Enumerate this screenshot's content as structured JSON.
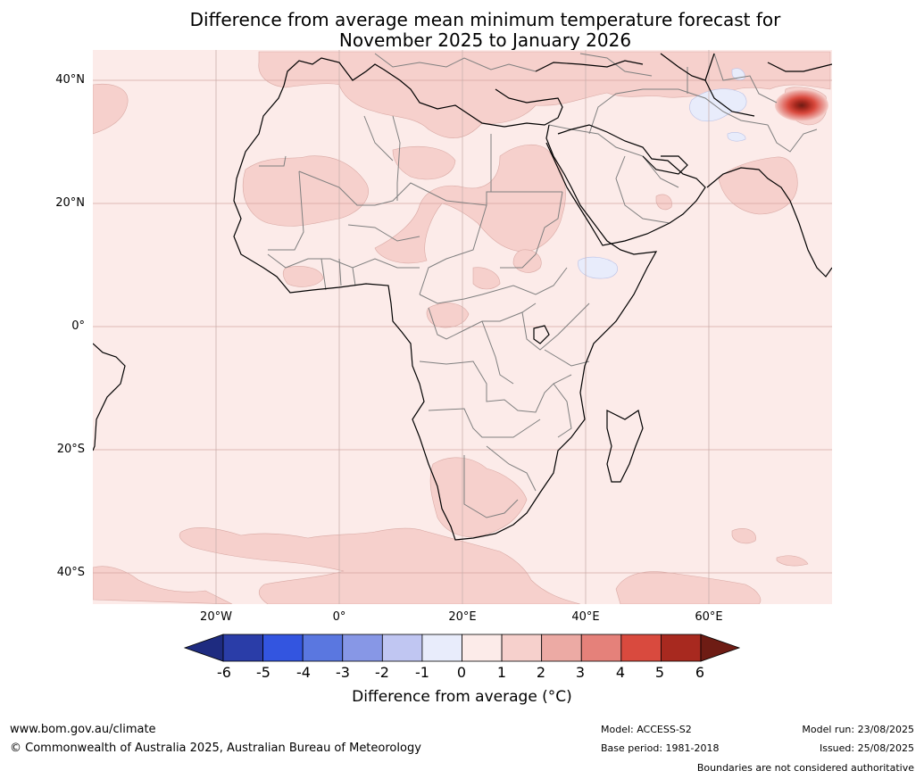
{
  "title": {
    "line1": "Difference from average mean minimum temperature forecast for",
    "line2": "November 2025 to January 2026"
  },
  "map": {
    "lat_labels": [
      "40°N",
      "20°N",
      "0°",
      "20°S",
      "40°S"
    ],
    "lon_labels": [
      "20°W",
      "0°",
      "20°E",
      "40°E",
      "60°E"
    ],
    "lat_values": [
      40,
      20,
      0,
      -20,
      -40
    ],
    "lon_values": [
      -20,
      0,
      20,
      40,
      60
    ],
    "extent": {
      "lon_min": -40,
      "lon_max": 80,
      "lat_min": -45,
      "lat_max": 45
    },
    "background_color": "#fcebe9",
    "land_outline_color": "#000000",
    "border_color": "#7f7f7f",
    "hotspot": {
      "lon": 75,
      "lat": 37,
      "peak_class": "5 to 6"
    },
    "cool_patches": [
      "Iran",
      "Ethiopia",
      "Afghanistan"
    ]
  },
  "colorbar": {
    "ticks": [
      "-6",
      "-5",
      "-4",
      "-3",
      "-2",
      "-1",
      "0",
      "1",
      "2",
      "3",
      "4",
      "5",
      "6"
    ],
    "colors": [
      "#2a3da8",
      "#3355e0",
      "#5a77e0",
      "#8797e6",
      "#c0c6f2",
      "#e8ecfb",
      "#fcebe9",
      "#f6d0cc",
      "#ecaaa4",
      "#e5817a",
      "#d94a3e",
      "#a8291f"
    ],
    "under_color": "#1e2b80",
    "over_color": "#6e1c14",
    "label": "Difference from average (°C)"
  },
  "footer": {
    "website": "www.bom.gov.au/climate",
    "copyright": "© Commonwealth of Australia 2025, Australian Bureau of Meteorology",
    "model": "Model: ACCESS-S2",
    "base_period": "Base period: 1981-2018",
    "model_run": "Model run: 23/08/2025",
    "issued": "Issued: 25/08/2025",
    "disclaimer": "Boundaries are not considered authoritative"
  }
}
